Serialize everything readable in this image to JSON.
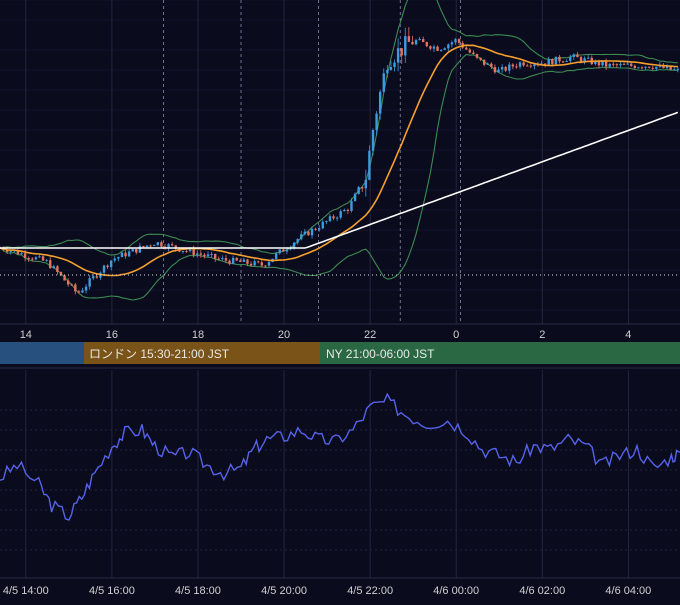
{
  "colors": {
    "background": "#0b0b1e",
    "grid": "#2a2a48",
    "candle_up": "#3d9be0",
    "candle_down": "#e5735f",
    "bollinger": "#3c8a52",
    "ma_short": "#f5a02e",
    "ma_long": "#ffffff",
    "oscillator": "#5563e8",
    "session_tokyo": "#27507f",
    "session_london": "#7a5318",
    "session_ny": "#2a6844",
    "axis_text": "#d0d0d0"
  },
  "price_panel": {
    "x_tick_labels": [
      "14",
      "16",
      "18",
      "20",
      "22",
      "0",
      "2",
      "4"
    ],
    "session_labels": {
      "london": "ロンドン 15:30-21:00 JST",
      "ny": "NY 21:00-06:00 JST"
    }
  },
  "oscillator_panel": {
    "x_tick_labels": [
      "4/5 14:00",
      "4/5 16:00",
      "4/5 18:00",
      "4/5 20:00",
      "4/5 22:00",
      "4/6 00:00",
      "4/6 02:00",
      "4/6 04:00"
    ]
  },
  "chart_data": [
    {
      "type": "candlestick",
      "x_range_hours": [
        13.4,
        29.2
      ],
      "x_ticks_hours": [
        14,
        16,
        18,
        20,
        22,
        24,
        26,
        28
      ],
      "indicators": [
        "bollinger bands",
        "short moving average",
        "long moving average",
        "dotted reference line"
      ],
      "grid": true,
      "price_path_relative": [
        [
          13.5,
          0.2
        ],
        [
          14.5,
          0.15
        ],
        [
          15.2,
          0.04
        ],
        [
          16.0,
          0.16
        ],
        [
          17.0,
          0.22
        ],
        [
          18.5,
          0.16
        ],
        [
          19.5,
          0.14
        ],
        [
          20.3,
          0.23
        ],
        [
          21.5,
          0.34
        ],
        [
          21.9,
          0.45
        ],
        [
          22.1,
          0.65
        ],
        [
          22.4,
          0.86
        ],
        [
          23.0,
          0.93
        ],
        [
          23.6,
          0.9
        ],
        [
          24.0,
          0.93
        ],
        [
          24.5,
          0.86
        ],
        [
          25.0,
          0.82
        ],
        [
          25.5,
          0.85
        ],
        [
          26.0,
          0.85
        ],
        [
          26.7,
          0.87
        ],
        [
          27.5,
          0.84
        ],
        [
          28.5,
          0.84
        ],
        [
          29.2,
          0.82
        ]
      ]
    },
    {
      "type": "line",
      "x_range_hours": [
        13.4,
        29.2
      ],
      "x_ticks_hours": [
        14,
        16,
        18,
        20,
        22,
        24,
        26,
        28
      ],
      "grid": true,
      "series_relative": [
        [
          13.4,
          0.42
        ],
        [
          13.8,
          0.5
        ],
        [
          14.3,
          0.38
        ],
        [
          14.6,
          0.25
        ],
        [
          15.0,
          0.18
        ],
        [
          15.3,
          0.3
        ],
        [
          15.6,
          0.45
        ],
        [
          16.0,
          0.62
        ],
        [
          16.3,
          0.7
        ],
        [
          16.7,
          0.72
        ],
        [
          17.0,
          0.62
        ],
        [
          17.4,
          0.55
        ],
        [
          17.8,
          0.58
        ],
        [
          18.2,
          0.5
        ],
        [
          18.6,
          0.45
        ],
        [
          19.0,
          0.48
        ],
        [
          19.3,
          0.6
        ],
        [
          19.6,
          0.66
        ],
        [
          20.0,
          0.68
        ],
        [
          20.4,
          0.72
        ],
        [
          20.8,
          0.66
        ],
        [
          21.2,
          0.65
        ],
        [
          21.6,
          0.72
        ],
        [
          22.0,
          0.86
        ],
        [
          22.4,
          0.9
        ],
        [
          22.8,
          0.82
        ],
        [
          23.3,
          0.76
        ],
        [
          23.8,
          0.78
        ],
        [
          24.2,
          0.72
        ],
        [
          24.6,
          0.6
        ],
        [
          25.0,
          0.56
        ],
        [
          25.4,
          0.52
        ],
        [
          25.8,
          0.62
        ],
        [
          26.2,
          0.6
        ],
        [
          26.6,
          0.66
        ],
        [
          27.0,
          0.62
        ],
        [
          27.4,
          0.5
        ],
        [
          27.8,
          0.56
        ],
        [
          28.2,
          0.6
        ],
        [
          28.6,
          0.48
        ],
        [
          29.0,
          0.55
        ],
        [
          29.2,
          0.58
        ]
      ]
    }
  ]
}
